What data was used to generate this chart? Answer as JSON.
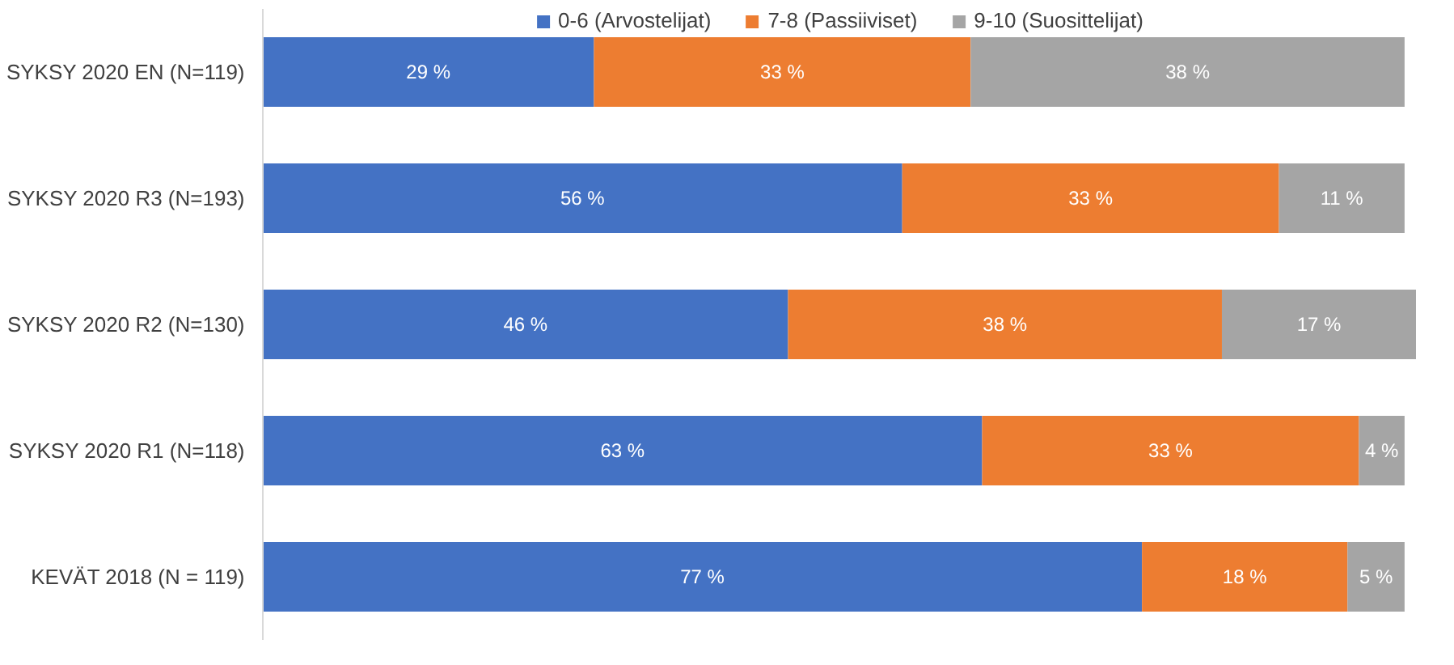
{
  "chart_data": {
    "type": "bar",
    "orientation": "horizontal",
    "stacked": true,
    "legend": "top",
    "grid": false,
    "tick_labels": "y",
    "categories": [
      "SYKSY 2020 EN (N=119)",
      "SYKSY 2020 R3 (N=193)",
      "SYKSY 2020 R2 (N=130)",
      "SYKSY 2020 R1 (N=118)",
      "KEVÄT 2018 (N = 119)"
    ],
    "series": [
      {
        "name": "0-6 (Arvostelijat)",
        "color": "#4472c4",
        "values": [
          29,
          56,
          46,
          63,
          77
        ],
        "value_labels": [
          "29 %",
          "56 %",
          "46 %",
          "63 %",
          "77 %"
        ]
      },
      {
        "name": "7-8 (Passiiviset)",
        "color": "#ed7d31",
        "values": [
          33,
          33,
          38,
          33,
          18
        ],
        "value_labels": [
          "33 %",
          "33 %",
          "38 %",
          "33 %",
          "18 %"
        ]
      },
      {
        "name": "9-10 (Suosittelijat)",
        "color": "#a5a5a5",
        "values": [
          38,
          11,
          17,
          4,
          5
        ],
        "value_labels": [
          "38 %",
          "11 %",
          "17 %",
          "4 %",
          "5 %"
        ]
      }
    ]
  }
}
